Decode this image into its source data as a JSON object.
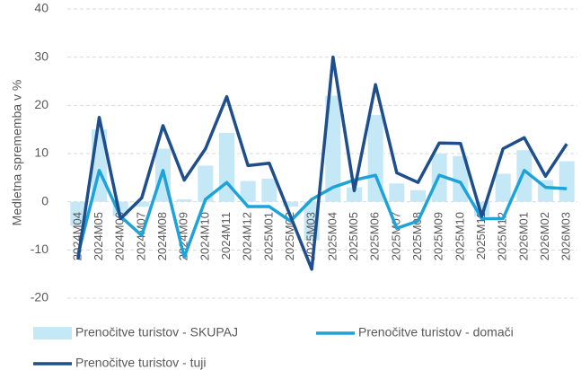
{
  "chart_data": {
    "type": "bar_line",
    "y_label": "Medletna sprememba v %",
    "categories": [
      "2024M04",
      "2024M05",
      "2024M06",
      "2024M07",
      "2024M08",
      "2024M09",
      "2024M10",
      "2024M11",
      "2024M12",
      "2025M01",
      "2025M02",
      "2025M03",
      "2025M04",
      "2025M05",
      "2025M06",
      "2025M07",
      "2025M08",
      "2025M09",
      "2025M10",
      "2025M11",
      "2025M12",
      "2026M01",
      "2026M02",
      "2026M03"
    ],
    "series": [
      {
        "name": "Prenočitve turistov - SKUPAJ",
        "kind": "bar",
        "color": "#c5e8f7",
        "values": [
          -5,
          15,
          -3,
          -1,
          11,
          0.5,
          7.5,
          14.3,
          4.3,
          4.8,
          -1,
          -8,
          22,
          3,
          18,
          3.8,
          2.4,
          10,
          9.5,
          -3,
          5.8,
          10.7,
          4.5,
          8.4
        ]
      },
      {
        "name": "Prenočitve turistov - domači",
        "kind": "line",
        "color": "#1ea3d8",
        "values": [
          -11,
          6.5,
          -3,
          -7,
          6.5,
          -11.5,
          0.5,
          4,
          -1,
          -1,
          -4,
          0.5,
          3,
          4.5,
          5.5,
          -5.5,
          -4,
          5.5,
          4,
          -3.5,
          -3.5,
          6.5,
          3,
          2.7
        ]
      },
      {
        "name": "Prenočitve turistov - tuji",
        "kind": "line",
        "color": "#1f4e8c",
        "values": [
          -12,
          17.5,
          -3.5,
          0.8,
          15.8,
          4.5,
          11,
          21.8,
          7.5,
          8,
          -3,
          -14,
          30,
          2.3,
          24.3,
          6,
          4,
          12.2,
          12.1,
          -3,
          11,
          13.3,
          5.3,
          12
        ]
      }
    ],
    "ylim": [
      -20,
      40
    ],
    "yticks": [
      -20,
      -10,
      0,
      10,
      20,
      30,
      40
    ],
    "grid": true
  }
}
